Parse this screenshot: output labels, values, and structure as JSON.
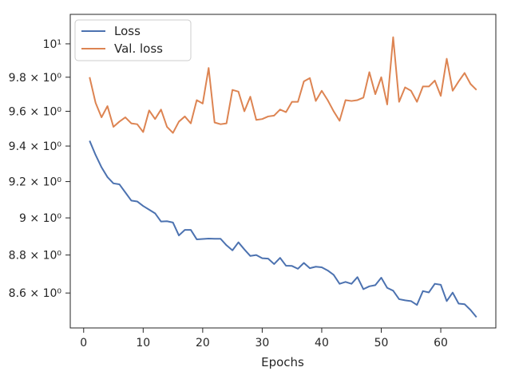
{
  "chart_data": {
    "type": "line",
    "title": "",
    "xlabel": "Epochs",
    "ylabel": "",
    "y_scale": "log",
    "xlim": [
      -2.25,
      69.25
    ],
    "ylim": [
      8.42,
      10.18
    ],
    "grid": false,
    "legend_position": "top-left",
    "x_ticks": [
      0,
      10,
      20,
      30,
      40,
      50,
      60
    ],
    "x_tick_labels": [
      "0",
      "10",
      "20",
      "30",
      "40",
      "50",
      "60"
    ],
    "y_ticks": [
      8.6,
      8.8,
      9.0,
      9.2,
      9.4,
      9.6,
      9.8,
      10.0
    ],
    "y_tick_labels": [
      "8.6 × 10⁰",
      "8.8 × 10⁰",
      "9 × 10⁰",
      "9.2 × 10⁰",
      "9.4 × 10⁰",
      "9.6 × 10⁰",
      "9.8 × 10⁰",
      "10¹"
    ],
    "x": [
      1,
      2,
      3,
      4,
      5,
      6,
      7,
      8,
      9,
      10,
      11,
      12,
      13,
      14,
      15,
      16,
      17,
      18,
      19,
      20,
      21,
      22,
      23,
      24,
      25,
      26,
      27,
      28,
      29,
      30,
      31,
      32,
      33,
      34,
      35,
      36,
      37,
      38,
      39,
      40,
      41,
      42,
      43,
      44,
      45,
      46,
      47,
      48,
      49,
      50,
      51,
      52,
      53,
      54,
      55,
      56,
      57,
      58,
      59,
      60,
      61,
      62,
      63,
      64,
      65,
      66
    ],
    "series": [
      {
        "name": "Loss",
        "color": "#4c72b0",
        "values": [
          9.43,
          9.35,
          9.28,
          9.225,
          9.19,
          9.185,
          9.14,
          9.095,
          9.09,
          9.065,
          9.045,
          9.025,
          8.98,
          8.982,
          8.975,
          8.905,
          8.935,
          8.935,
          8.884,
          8.886,
          8.888,
          8.887,
          8.887,
          8.852,
          8.825,
          8.868,
          8.83,
          8.795,
          8.8,
          8.783,
          8.781,
          8.752,
          8.785,
          8.743,
          8.742,
          8.727,
          8.758,
          8.73,
          8.738,
          8.735,
          8.718,
          8.695,
          8.648,
          8.658,
          8.648,
          8.683,
          8.62,
          8.635,
          8.641,
          8.68,
          8.627,
          8.612,
          8.568,
          8.562,
          8.558,
          8.538,
          8.61,
          8.603,
          8.648,
          8.643,
          8.558,
          8.602,
          8.545,
          8.542,
          8.512,
          8.475
        ]
      },
      {
        "name": "Val. loss",
        "color": "#dd8452",
        "values": [
          9.8,
          9.65,
          9.565,
          9.63,
          9.51,
          9.54,
          9.565,
          9.53,
          9.525,
          9.48,
          9.605,
          9.555,
          9.61,
          9.51,
          9.475,
          9.54,
          9.57,
          9.53,
          9.665,
          9.645,
          9.855,
          9.535,
          9.525,
          9.53,
          9.725,
          9.715,
          9.6,
          9.685,
          9.55,
          9.555,
          9.57,
          9.575,
          9.61,
          9.595,
          9.655,
          9.655,
          9.775,
          9.795,
          9.66,
          9.72,
          9.665,
          9.6,
          9.545,
          9.665,
          9.66,
          9.665,
          9.68,
          9.83,
          9.7,
          9.8,
          9.64,
          10.04,
          9.655,
          9.74,
          9.72,
          9.655,
          9.745,
          9.745,
          9.78,
          9.69,
          9.91,
          9.72,
          9.775,
          9.825,
          9.76,
          9.725
        ]
      }
    ]
  }
}
